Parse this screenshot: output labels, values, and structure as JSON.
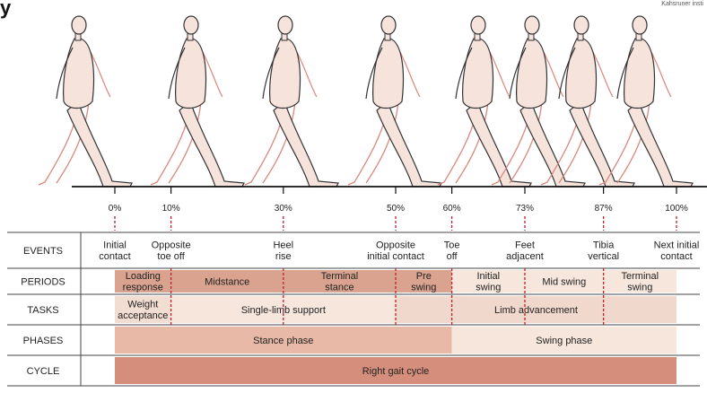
{
  "watermark": "Kahsruner insti",
  "logo_partial": "y",
  "percentages": [
    {
      "label": "0%",
      "value": 0
    },
    {
      "label": "10%",
      "value": 10
    },
    {
      "label": "30%",
      "value": 30
    },
    {
      "label": "50%",
      "value": 50
    },
    {
      "label": "60%",
      "value": 60
    },
    {
      "label": "73%",
      "value": 73
    },
    {
      "label": "87%",
      "value": 87
    },
    {
      "label": "100%",
      "value": 100
    }
  ],
  "row_labels": {
    "events": "EVENTS",
    "periods": "PERIODS",
    "tasks": "TASKS",
    "phases": "PHASES",
    "cycle": "CYCLE"
  },
  "events": [
    {
      "lines": [
        "Initial",
        "contact"
      ],
      "at": 0
    },
    {
      "lines": [
        "Opposite",
        "toe off"
      ],
      "at": 10
    },
    {
      "lines": [
        "Heel",
        "rise"
      ],
      "at": 30
    },
    {
      "lines": [
        "Opposite",
        "initial contact"
      ],
      "at": 50
    },
    {
      "lines": [
        "Toe",
        "off"
      ],
      "at": 60
    },
    {
      "lines": [
        "Feet",
        "adjacent"
      ],
      "at": 73
    },
    {
      "lines": [
        "Tibia",
        "vertical"
      ],
      "at": 87
    },
    {
      "lines": [
        "Next initial",
        "contact"
      ],
      "at": 100
    }
  ],
  "periods": [
    {
      "lines": [
        "Loading",
        "response"
      ],
      "from": 0,
      "to": 10,
      "color": "#d9a38f"
    },
    {
      "lines": [
        "Midstance"
      ],
      "from": 10,
      "to": 30,
      "color": "#d9a38f"
    },
    {
      "lines": [
        "Terminal",
        "stance"
      ],
      "from": 30,
      "to": 50,
      "color": "#d9a38f"
    },
    {
      "lines": [
        "Pre",
        "swing"
      ],
      "from": 50,
      "to": 60,
      "color": "#d9a38f"
    },
    {
      "lines": [
        "Initial",
        "swing"
      ],
      "from": 60,
      "to": 73,
      "color": "#f6e6dc"
    },
    {
      "lines": [
        "Mid swing"
      ],
      "from": 73,
      "to": 87,
      "color": "#f6e6dc"
    },
    {
      "lines": [
        "Terminal",
        "swing"
      ],
      "from": 87,
      "to": 100,
      "color": "#f6e6dc"
    }
  ],
  "tasks": [
    {
      "lines": [
        "Weight",
        "acceptance"
      ],
      "from": 0,
      "to": 10,
      "color": "#f2ddd2"
    },
    {
      "lines": [
        "Single-limb support"
      ],
      "from": 10,
      "to": 50,
      "color": "#f6e6dc"
    },
    {
      "lines": [
        "Limb advancement"
      ],
      "from": 50,
      "to": 100,
      "color": "#f0d8cc"
    }
  ],
  "phases": [
    {
      "lines": [
        "Stance phase"
      ],
      "from": 0,
      "to": 60,
      "color": "#e8b9a6"
    },
    {
      "lines": [
        "Swing phase"
      ],
      "from": 60,
      "to": 100,
      "color": "#f6e6dc"
    }
  ],
  "cycle": [
    {
      "lines": [
        "Right gait cycle"
      ],
      "from": 0,
      "to": 100,
      "color": "#d48e7b"
    }
  ],
  "dividers_at": [
    10,
    30,
    50,
    60,
    73,
    87
  ],
  "colors": {
    "body_fill": "#f6e3dc",
    "body_stroke": "#333333",
    "back_leg": "#d9877a",
    "dashed": "#c0202a",
    "row_border": "#444444"
  }
}
